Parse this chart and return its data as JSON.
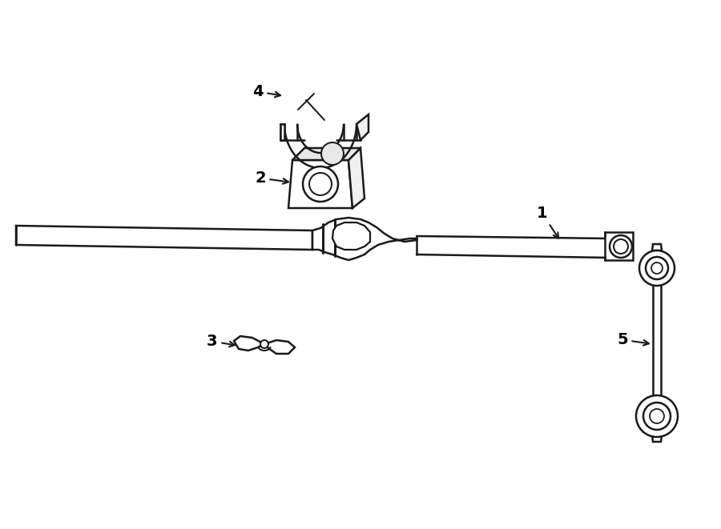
{
  "background_color": "#ffffff",
  "line_color": "#1a1a1a",
  "line_width": 1.8,
  "fig_width": 9.0,
  "fig_height": 6.61,
  "dpi": 100
}
